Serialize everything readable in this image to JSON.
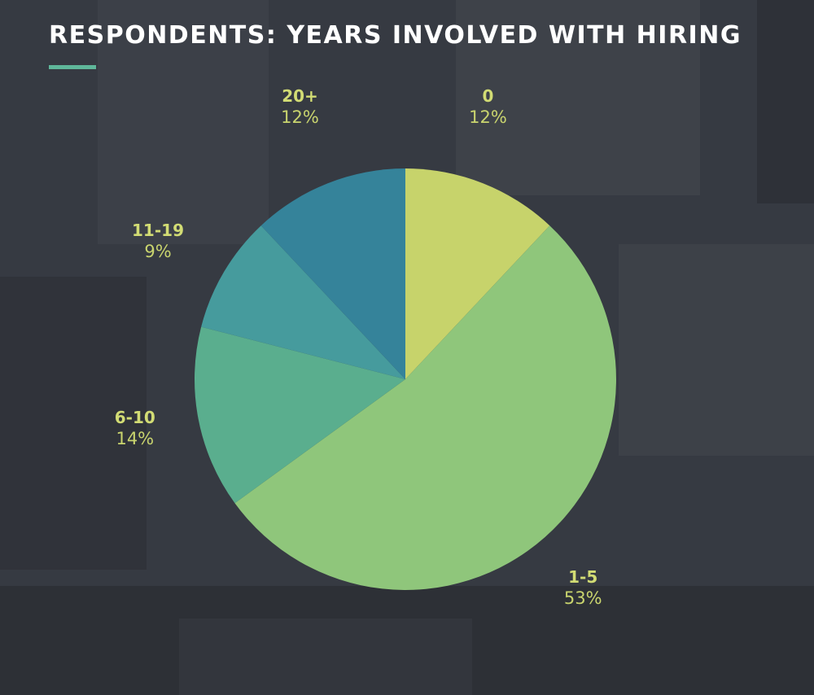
{
  "colors": {
    "background": "#363a42",
    "title": "#ffffff",
    "accent": "#5fb79a",
    "label": "#d2dc74"
  },
  "chart_data": {
    "type": "pie",
    "title": "RESPONDENTS: YEARS INVOLVED WITH HIRING",
    "start": "top (12 o'clock)",
    "direction": "clockwise",
    "slices": [
      {
        "label": "0",
        "value": 12,
        "display": "12%",
        "color": "#c7d36b"
      },
      {
        "label": "1-5",
        "value": 53,
        "display": "53%",
        "color": "#8fc67b"
      },
      {
        "label": "6-10",
        "value": 14,
        "display": "14%",
        "color": "#5aae8e"
      },
      {
        "label": "11-19",
        "value": 9,
        "display": "9%",
        "color": "#469b9d"
      },
      {
        "label": "20+",
        "value": 12,
        "display": "12%",
        "color": "#35839a"
      }
    ]
  }
}
